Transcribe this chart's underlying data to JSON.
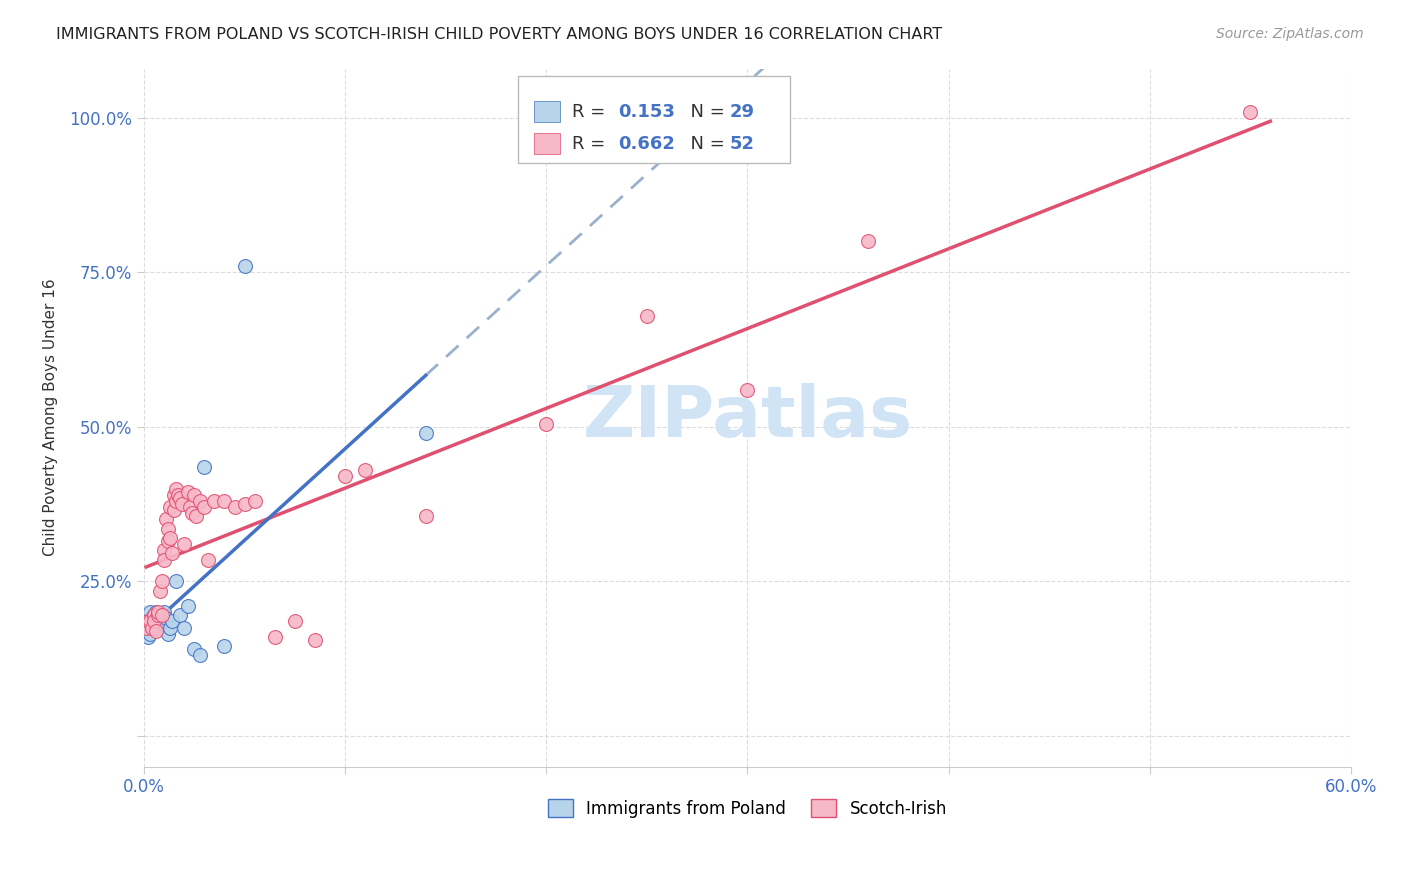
{
  "title": "IMMIGRANTS FROM POLAND VS SCOTCH-IRISH CHILD POVERTY AMONG BOYS UNDER 16 CORRELATION CHART",
  "source": "Source: ZipAtlas.com",
  "ylabel": "Child Poverty Among Boys Under 16",
  "r_poland": 0.153,
  "n_poland": 29,
  "r_scotch": 0.662,
  "n_scotch": 52,
  "xlim": [
    0.0,
    0.6
  ],
  "ylim": [
    -0.05,
    1.08
  ],
  "xtick_positions": [
    0.0,
    0.1,
    0.2,
    0.3,
    0.4,
    0.5,
    0.6
  ],
  "xtick_labels": [
    "0.0%",
    "",
    "",
    "",
    "",
    "",
    "60.0%"
  ],
  "ytick_positions": [
    0.0,
    0.25,
    0.5,
    0.75,
    1.0
  ],
  "ytick_labels": [
    "",
    "25.0%",
    "50.0%",
    "75.0%",
    "100.0%"
  ],
  "color_poland": "#b8d4ea",
  "color_scotch": "#f7b8c8",
  "line_color_poland": "#4472c4",
  "line_color_scotch": "#e05070",
  "line_color_dash": "#9ab0cc",
  "watermark_color": "#d0e4f5",
  "poland_scatter": [
    [
      0.001,
      0.175
    ],
    [
      0.002,
      0.16
    ],
    [
      0.002,
      0.18
    ],
    [
      0.003,
      0.165
    ],
    [
      0.003,
      0.2
    ],
    [
      0.004,
      0.175
    ],
    [
      0.004,
      0.19
    ],
    [
      0.005,
      0.195
    ],
    [
      0.005,
      0.185
    ],
    [
      0.006,
      0.2
    ],
    [
      0.007,
      0.175
    ],
    [
      0.007,
      0.185
    ],
    [
      0.008,
      0.195
    ],
    [
      0.009,
      0.18
    ],
    [
      0.01,
      0.2
    ],
    [
      0.011,
      0.19
    ],
    [
      0.012,
      0.165
    ],
    [
      0.013,
      0.175
    ],
    [
      0.014,
      0.185
    ],
    [
      0.016,
      0.25
    ],
    [
      0.018,
      0.195
    ],
    [
      0.02,
      0.175
    ],
    [
      0.022,
      0.21
    ],
    [
      0.025,
      0.14
    ],
    [
      0.028,
      0.13
    ],
    [
      0.03,
      0.435
    ],
    [
      0.04,
      0.145
    ],
    [
      0.05,
      0.76
    ],
    [
      0.14,
      0.49
    ]
  ],
  "scotch_scatter": [
    [
      0.001,
      0.175
    ],
    [
      0.002,
      0.185
    ],
    [
      0.003,
      0.185
    ],
    [
      0.004,
      0.175
    ],
    [
      0.005,
      0.195
    ],
    [
      0.005,
      0.185
    ],
    [
      0.006,
      0.17
    ],
    [
      0.007,
      0.195
    ],
    [
      0.007,
      0.2
    ],
    [
      0.008,
      0.235
    ],
    [
      0.009,
      0.25
    ],
    [
      0.009,
      0.195
    ],
    [
      0.01,
      0.3
    ],
    [
      0.01,
      0.285
    ],
    [
      0.011,
      0.35
    ],
    [
      0.012,
      0.335
    ],
    [
      0.012,
      0.315
    ],
    [
      0.013,
      0.32
    ],
    [
      0.013,
      0.37
    ],
    [
      0.014,
      0.295
    ],
    [
      0.015,
      0.365
    ],
    [
      0.015,
      0.39
    ],
    [
      0.016,
      0.38
    ],
    [
      0.016,
      0.4
    ],
    [
      0.017,
      0.39
    ],
    [
      0.018,
      0.385
    ],
    [
      0.019,
      0.375
    ],
    [
      0.02,
      0.31
    ],
    [
      0.022,
      0.395
    ],
    [
      0.023,
      0.37
    ],
    [
      0.024,
      0.36
    ],
    [
      0.025,
      0.39
    ],
    [
      0.026,
      0.355
    ],
    [
      0.028,
      0.38
    ],
    [
      0.03,
      0.37
    ],
    [
      0.032,
      0.285
    ],
    [
      0.035,
      0.38
    ],
    [
      0.04,
      0.38
    ],
    [
      0.045,
      0.37
    ],
    [
      0.05,
      0.375
    ],
    [
      0.055,
      0.38
    ],
    [
      0.065,
      0.16
    ],
    [
      0.075,
      0.185
    ],
    [
      0.085,
      0.155
    ],
    [
      0.1,
      0.42
    ],
    [
      0.11,
      0.43
    ],
    [
      0.14,
      0.355
    ],
    [
      0.2,
      0.505
    ],
    [
      0.25,
      0.68
    ],
    [
      0.3,
      0.56
    ],
    [
      0.36,
      0.8
    ],
    [
      0.55,
      1.01
    ]
  ],
  "poland_trend_x_start": 0.001,
  "poland_trend_x_solid_end": 0.14,
  "poland_trend_x_dash_end": 0.6,
  "scotch_trend_x_start": 0.001,
  "scotch_trend_x_end": 0.56
}
